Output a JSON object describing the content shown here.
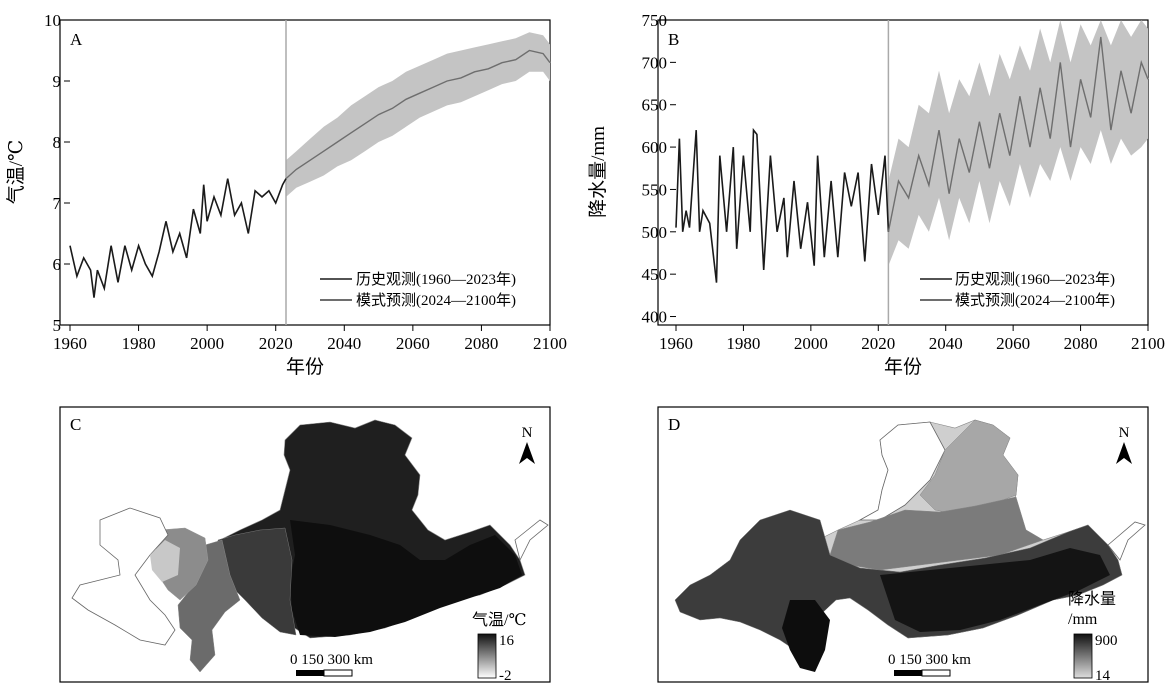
{
  "chart_data": [
    {
      "panel": "A",
      "type": "line",
      "ylabel": "气温/℃",
      "xlabel": "年份",
      "xlim": [
        1960,
        2100
      ],
      "ylim": [
        5,
        10
      ],
      "xticks": [
        "1960",
        "1980",
        "2000",
        "2020",
        "2040",
        "2060",
        "2080",
        "2100"
      ],
      "yticks": [
        "5",
        "6",
        "7",
        "8",
        "9",
        "10"
      ],
      "divider_year": 2023,
      "legend": [
        "历史观测(1960—2023年)",
        "模式预测(2024—2100年)"
      ],
      "legend_position": "bottom-right",
      "series": [
        {
          "name": "历史观测(1960—2023年)",
          "color": "#1a1a1a",
          "x": [
            1960,
            1962,
            1964,
            1966,
            1967,
            1968,
            1970,
            1972,
            1974,
            1976,
            1978,
            1980,
            1982,
            1984,
            1986,
            1988,
            1990,
            1992,
            1994,
            1996,
            1998,
            1999,
            2000,
            2002,
            2004,
            2006,
            2008,
            2010,
            2012,
            2014,
            2016,
            2018,
            2020,
            2022,
            2023
          ],
          "y": [
            6.3,
            5.8,
            6.1,
            5.9,
            5.45,
            5.9,
            5.6,
            6.3,
            5.7,
            6.3,
            5.9,
            6.3,
            6.0,
            5.8,
            6.2,
            6.7,
            6.2,
            6.5,
            6.1,
            6.9,
            6.5,
            7.3,
            6.7,
            7.1,
            6.8,
            7.4,
            6.8,
            7.0,
            6.5,
            7.2,
            7.1,
            7.2,
            7.0,
            7.3,
            7.4
          ]
        },
        {
          "name": "模式预测(2024—2100年)",
          "color": "#6e6e6e",
          "x": [
            2023,
            2026,
            2030,
            2034,
            2038,
            2042,
            2046,
            2050,
            2054,
            2058,
            2062,
            2066,
            2070,
            2074,
            2078,
            2082,
            2086,
            2090,
            2094,
            2098,
            2100
          ],
          "y": [
            7.4,
            7.55,
            7.7,
            7.85,
            8.0,
            8.15,
            8.3,
            8.45,
            8.55,
            8.7,
            8.8,
            8.9,
            9.0,
            9.05,
            9.15,
            9.2,
            9.3,
            9.35,
            9.5,
            9.45,
            9.3
          ],
          "band_upper": [
            7.7,
            7.85,
            8.05,
            8.25,
            8.4,
            8.6,
            8.75,
            8.9,
            9.0,
            9.15,
            9.25,
            9.35,
            9.45,
            9.5,
            9.55,
            9.6,
            9.65,
            9.7,
            9.8,
            9.75,
            9.6
          ],
          "band_lower": [
            7.1,
            7.25,
            7.35,
            7.45,
            7.6,
            7.7,
            7.85,
            8.0,
            8.1,
            8.25,
            8.4,
            8.5,
            8.6,
            8.65,
            8.75,
            8.85,
            8.95,
            9.0,
            9.15,
            9.15,
            9.0
          ]
        }
      ]
    },
    {
      "panel": "B",
      "type": "line",
      "ylabel": "降水量/mm",
      "xlabel": "年份",
      "xlim": [
        1960,
        2100
      ],
      "ylim": [
        390,
        750
      ],
      "xticks": [
        "1960",
        "1980",
        "2000",
        "2020",
        "2040",
        "2060",
        "2080",
        "2100"
      ],
      "yticks": [
        "400",
        "450",
        "500",
        "550",
        "600",
        "650",
        "700",
        "750"
      ],
      "divider_year": 2023,
      "legend": [
        "历史观测(1960—2023年)",
        "模式预测(2024—2100年)"
      ],
      "legend_position": "bottom-right",
      "series": [
        {
          "name": "历史观测(1960—2023年)",
          "color": "#1a1a1a",
          "x": [
            1960,
            1961,
            1962,
            1963,
            1964,
            1966,
            1967,
            1968,
            1970,
            1972,
            1973,
            1975,
            1977,
            1978,
            1980,
            1982,
            1983,
            1984,
            1986,
            1988,
            1990,
            1992,
            1993,
            1995,
            1997,
            1999,
            2001,
            2002,
            2004,
            2006,
            2008,
            2010,
            2012,
            2014,
            2016,
            2018,
            2020,
            2022,
            2023
          ],
          "y": [
            505,
            610,
            500,
            525,
            505,
            620,
            500,
            525,
            510,
            440,
            590,
            500,
            600,
            480,
            590,
            500,
            620,
            615,
            455,
            590,
            500,
            540,
            470,
            560,
            480,
            535,
            460,
            590,
            470,
            560,
            470,
            570,
            530,
            570,
            465,
            580,
            520,
            590,
            500
          ]
        },
        {
          "name": "模式预测(2024—2100年)",
          "color": "#6e6e6e",
          "x": [
            2023,
            2026,
            2029,
            2032,
            2035,
            2038,
            2041,
            2044,
            2047,
            2050,
            2053,
            2056,
            2059,
            2062,
            2065,
            2068,
            2071,
            2074,
            2077,
            2080,
            2083,
            2086,
            2089,
            2092,
            2095,
            2098,
            2100
          ],
          "y": [
            500,
            560,
            540,
            590,
            555,
            620,
            545,
            610,
            570,
            630,
            575,
            640,
            590,
            660,
            600,
            670,
            610,
            700,
            600,
            680,
            635,
            730,
            620,
            690,
            640,
            700,
            680
          ],
          "band_upper": [
            560,
            610,
            600,
            650,
            640,
            690,
            640,
            680,
            660,
            700,
            660,
            710,
            680,
            720,
            690,
            740,
            700,
            750,
            700,
            745,
            720,
            750,
            720,
            750,
            730,
            750,
            740
          ],
          "band_lower": [
            460,
            490,
            480,
            520,
            500,
            540,
            490,
            540,
            510,
            560,
            510,
            560,
            530,
            580,
            540,
            580,
            560,
            600,
            560,
            600,
            580,
            620,
            580,
            610,
            590,
            600,
            610
          ]
        }
      ]
    },
    {
      "panel": "C",
      "type": "map",
      "north_label": "N",
      "scale_label": "0 150 300 km",
      "legend_title": "气温/℃",
      "legend_max": "16",
      "legend_min": "-2"
    },
    {
      "panel": "D",
      "type": "map",
      "north_label": "N",
      "scale_label": "0 150 300 km",
      "legend_title": "降水量",
      "legend_unit": "/mm",
      "legend_max": "900",
      "legend_min": "14"
    }
  ]
}
